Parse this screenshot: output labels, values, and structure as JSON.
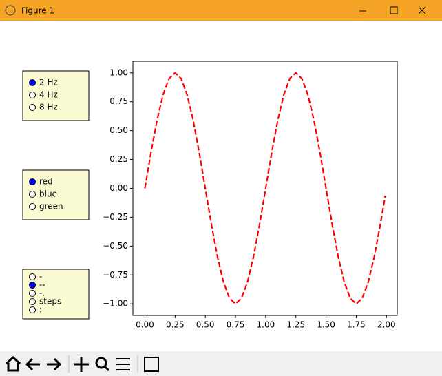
{
  "window": {
    "title": "Figure 1"
  },
  "radio_groups": [
    {
      "options": [
        "2 Hz",
        "4 Hz",
        "8 Hz"
      ],
      "selected": 0
    },
    {
      "options": [
        "red",
        "blue",
        "green"
      ],
      "selected": 0
    },
    {
      "options": [
        "-",
        "--",
        "-.",
        "steps",
        ":"
      ],
      "selected": 1
    }
  ],
  "chart_data": {
    "type": "line",
    "x": [
      0,
      0.05,
      0.1,
      0.15,
      0.2,
      0.25,
      0.3,
      0.35,
      0.4,
      0.45,
      0.5,
      0.55,
      0.6,
      0.65,
      0.7,
      0.75,
      0.8,
      0.85,
      0.9,
      0.95,
      1.0,
      1.05,
      1.1,
      1.15,
      1.2,
      1.25,
      1.3,
      1.35,
      1.4,
      1.45,
      1.5,
      1.55,
      1.6,
      1.65,
      1.7,
      1.75,
      1.8,
      1.85,
      1.9,
      1.95,
      1.99
    ],
    "values": [
      0,
      0.309,
      0.588,
      0.809,
      0.951,
      1,
      0.951,
      0.809,
      0.588,
      0.309,
      0,
      -0.309,
      -0.588,
      -0.809,
      -0.951,
      -1,
      -0.951,
      -0.809,
      -0.588,
      -0.309,
      0,
      0.309,
      0.588,
      0.809,
      0.951,
      1,
      0.951,
      0.809,
      0.588,
      0.309,
      0,
      -0.309,
      -0.588,
      -0.809,
      -0.951,
      -1,
      -0.951,
      -0.809,
      -0.588,
      -0.309,
      -0.063
    ],
    "color": "#ff0000",
    "linestyle": "dashed",
    "xlim": [
      -0.0995,
      2.0895
    ],
    "ylim": [
      -1.1,
      1.1
    ],
    "xticks": [
      {
        "value": 0,
        "label": "0.00"
      },
      {
        "value": 0.25,
        "label": "0.25"
      },
      {
        "value": 0.5,
        "label": "0.50"
      },
      {
        "value": 0.75,
        "label": "0.75"
      },
      {
        "value": 1,
        "label": "1.00"
      },
      {
        "value": 1.25,
        "label": "1.25"
      },
      {
        "value": 1.5,
        "label": "1.50"
      },
      {
        "value": 1.75,
        "label": "1.75"
      },
      {
        "value": 2,
        "label": "2.00"
      }
    ],
    "yticks": [
      {
        "value": -1,
        "label": "−1.00"
      },
      {
        "value": -0.75,
        "label": "−0.75"
      },
      {
        "value": -0.5,
        "label": "−0.50"
      },
      {
        "value": -0.25,
        "label": "−0.25"
      },
      {
        "value": 0,
        "label": "0.00"
      },
      {
        "value": 0.25,
        "label": "0.25"
      },
      {
        "value": 0.5,
        "label": "0.50"
      },
      {
        "value": 0.75,
        "label": "0.75"
      },
      {
        "value": 1,
        "label": "1.00"
      }
    ]
  }
}
